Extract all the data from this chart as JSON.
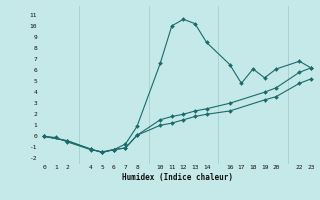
{
  "xlabel": "Humidex (Indice chaleur)",
  "bg_color": "#c5e8e8",
  "grid_color": "#a8d0d0",
  "line_color": "#1a6b6b",
  "xlim": [
    -0.5,
    23.5
  ],
  "ylim": [
    -2.5,
    11.8
  ],
  "xtick_labels": [
    "0",
    "1",
    "2",
    "4",
    "5",
    "6",
    "7",
    "8",
    "10",
    "11",
    "12",
    "13",
    "14",
    "16",
    "17",
    "18",
    "19",
    "20",
    "22",
    "23"
  ],
  "xtick_pos": [
    0,
    1,
    2,
    4,
    5,
    6,
    7,
    8,
    10,
    11,
    12,
    13,
    14,
    16,
    17,
    18,
    19,
    20,
    22,
    23
  ],
  "ytick_labels": [
    "-2",
    "-1",
    "0",
    "1",
    "2",
    "3",
    "4",
    "5",
    "6",
    "7",
    "8",
    "9",
    "10",
    "11"
  ],
  "ytick_pos": [
    -2,
    -1,
    0,
    1,
    2,
    3,
    4,
    5,
    6,
    7,
    8,
    9,
    10,
    11
  ],
  "line1_x": [
    0,
    1,
    2,
    4,
    5,
    6,
    7,
    8,
    10,
    11,
    12,
    13,
    14,
    16,
    17,
    18,
    19,
    20,
    22,
    23
  ],
  "line1_y": [
    0.0,
    -0.1,
    -0.5,
    -1.2,
    -1.4,
    -1.2,
    -0.7,
    0.9,
    6.6,
    10.0,
    10.6,
    10.2,
    8.5,
    6.5,
    4.8,
    6.1,
    5.3,
    6.1,
    6.8,
    6.2
  ],
  "line2_x": [
    0,
    2,
    4,
    5,
    6,
    7,
    8,
    10,
    11,
    12,
    13,
    14,
    16,
    19,
    20,
    22,
    23
  ],
  "line2_y": [
    0.0,
    -0.4,
    -1.15,
    -1.45,
    -1.2,
    -1.05,
    0.1,
    1.5,
    1.8,
    2.0,
    2.3,
    2.5,
    3.0,
    4.0,
    4.4,
    5.8,
    6.2
  ],
  "line3_x": [
    0,
    2,
    4,
    5,
    6,
    7,
    8,
    10,
    11,
    12,
    13,
    14,
    16,
    19,
    20,
    22,
    23
  ],
  "line3_y": [
    0.0,
    -0.4,
    -1.15,
    -1.45,
    -1.2,
    -1.05,
    0.1,
    1.0,
    1.2,
    1.5,
    1.8,
    2.0,
    2.3,
    3.3,
    3.6,
    4.8,
    5.2
  ]
}
